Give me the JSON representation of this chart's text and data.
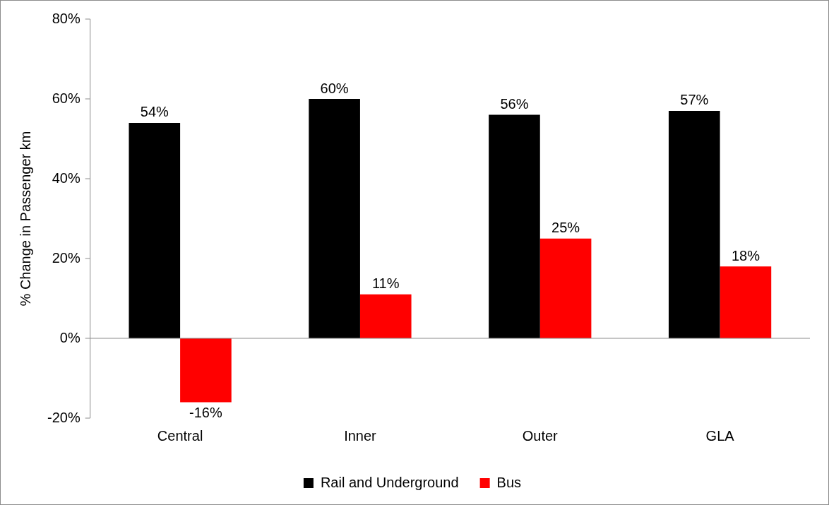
{
  "chart_data": {
    "type": "bar",
    "ylabel": "% Change in Passenger km",
    "categories": [
      "Central",
      "Inner",
      "Outer",
      "GLA"
    ],
    "series": [
      {
        "name": "Rail and Underground",
        "color": "#000000",
        "values": [
          54,
          60,
          56,
          57
        ],
        "value_labels": [
          "54%",
          "60%",
          "56%",
          "57%"
        ]
      },
      {
        "name": "Bus",
        "color": "#ff0000",
        "values": [
          -16,
          11,
          25,
          18
        ],
        "value_labels": [
          "-16%",
          "11%",
          "25%",
          "18%"
        ]
      }
    ],
    "ylim": [
      -20,
      80
    ],
    "yticks": [
      {
        "value": -20,
        "label": "-20%"
      },
      {
        "value": 0,
        "label": "0%"
      },
      {
        "value": 20,
        "label": "20%"
      },
      {
        "value": 40,
        "label": "40%"
      },
      {
        "value": 60,
        "label": "60%"
      },
      {
        "value": 80,
        "label": "80%"
      }
    ],
    "legend": "bottom"
  }
}
